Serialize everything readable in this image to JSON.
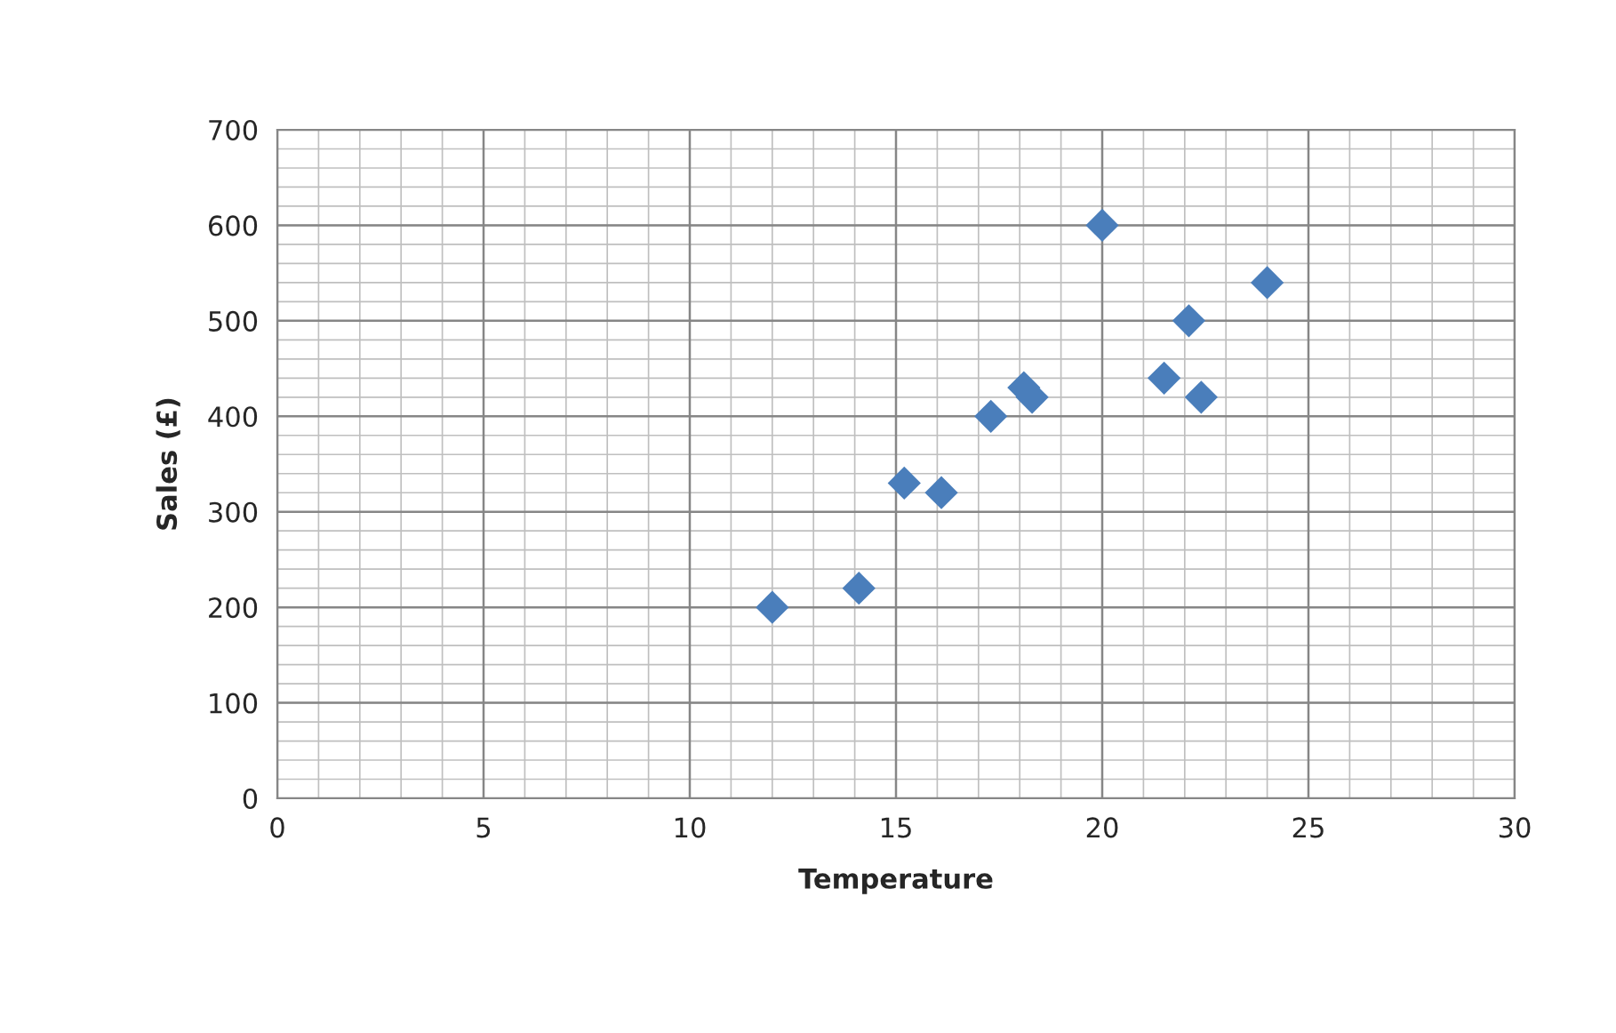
{
  "chart_data": {
    "type": "scatter",
    "xlabel": "Temperature",
    "ylabel": "Sales (£)",
    "x": [
      12,
      14.1,
      15.2,
      16.1,
      17.3,
      18.1,
      18.3,
      20,
      21.5,
      22.1,
      22.4,
      24
    ],
    "series": [
      {
        "color": "#4a7ebb",
        "values": [
          200,
          220,
          330,
          320,
          400,
          430,
          420,
          600,
          440,
          500,
          420,
          540
        ]
      }
    ],
    "xlim": [
      0,
      30
    ],
    "xticks": [
      0,
      5,
      10,
      15,
      20,
      25,
      30
    ],
    "ylim": [
      0,
      700
    ],
    "yticks": [
      0,
      100,
      200,
      300,
      400,
      500,
      600,
      700
    ],
    "grid": true,
    "marker": "diamond",
    "legend": false
  }
}
